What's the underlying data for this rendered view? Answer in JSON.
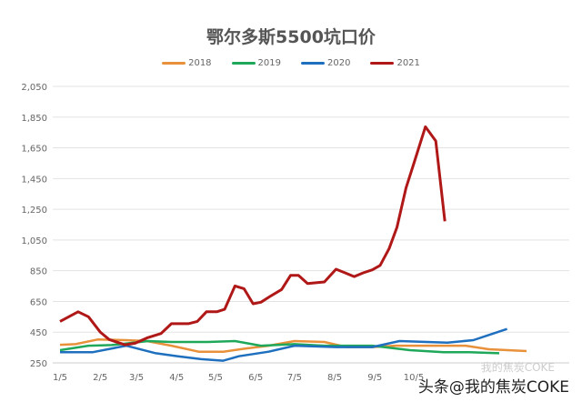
{
  "chart_data": {
    "type": "line",
    "title": "鄂尔多斯5500坑口价",
    "xlabel": "",
    "ylabel": "",
    "ylim": [
      250,
      2050
    ],
    "yticks": [
      "2,050",
      "1,850",
      "1,650",
      "1,450",
      "1,250",
      "1,050",
      "850",
      "650",
      "450",
      "250"
    ],
    "xticks": [
      "1/5",
      "2/5",
      "3/5",
      "4/5",
      "5/5",
      "6/5",
      "7/5",
      "8/5",
      "9/5",
      "10/5"
    ],
    "grid": "horizontal",
    "legend_position": "top",
    "series": [
      {
        "name": "2018",
        "color": "#e8913a",
        "points": [
          [
            "1/5",
            368
          ],
          [
            "1/17",
            372
          ],
          [
            "2/3",
            402
          ],
          [
            "2/25",
            398
          ],
          [
            "3/13",
            392
          ],
          [
            "4/1",
            362
          ],
          [
            "4/22",
            323
          ],
          [
            "5/11",
            323
          ],
          [
            "5/28",
            343
          ],
          [
            "6/15",
            362
          ],
          [
            "7/5",
            392
          ],
          [
            "7/28",
            386
          ],
          [
            "8/14",
            353
          ],
          [
            "9/3",
            353
          ],
          [
            "9/21",
            362
          ],
          [
            "10/17",
            362
          ],
          [
            "11/14",
            362
          ],
          [
            "12/2",
            339
          ],
          [
            "12/31",
            327
          ]
        ]
      },
      {
        "name": "2019",
        "color": "#1fa85a",
        "points": [
          [
            "1/5",
            333
          ],
          [
            "1/27",
            362
          ],
          [
            "2/14",
            366
          ],
          [
            "3/14",
            392
          ],
          [
            "4/1",
            386
          ],
          [
            "4/29",
            386
          ],
          [
            "5/20",
            392
          ],
          [
            "6/9",
            362
          ],
          [
            "7/5",
            372
          ],
          [
            "7/28",
            362
          ],
          [
            "9/3",
            362
          ],
          [
            "10/2",
            333
          ],
          [
            "10/28",
            319
          ],
          [
            "11/17",
            319
          ],
          [
            "12/10",
            313
          ]
        ]
      },
      {
        "name": "2020",
        "color": "#1f6fbf",
        "points": [
          [
            "1/5",
            319
          ],
          [
            "1/30",
            319
          ],
          [
            "2/25",
            362
          ],
          [
            "3/20",
            313
          ],
          [
            "4/6",
            293
          ],
          [
            "4/24",
            274
          ],
          [
            "5/11",
            264
          ],
          [
            "5/23",
            293
          ],
          [
            "6/15",
            323
          ],
          [
            "7/5",
            362
          ],
          [
            "8/6",
            353
          ],
          [
            "9/3",
            353
          ],
          [
            "9/24",
            392
          ],
          [
            "10/31",
            382
          ],
          [
            "11/20",
            398
          ],
          [
            "12/2",
            432
          ],
          [
            "12/16",
            471
          ]
        ]
      },
      {
        "name": "2021",
        "color": "#b01818",
        "points": [
          [
            "1/5",
            520
          ],
          [
            "1/19",
            583
          ],
          [
            "1/27",
            550
          ],
          [
            "2/5",
            451
          ],
          [
            "2/12",
            402
          ],
          [
            "2/24",
            368
          ],
          [
            "3/4",
            378
          ],
          [
            "3/13",
            412
          ],
          [
            "3/24",
            441
          ],
          [
            "4/1",
            505
          ],
          [
            "4/14",
            505
          ],
          [
            "4/21",
            520
          ],
          [
            "4/28",
            583
          ],
          [
            "5/6",
            583
          ],
          [
            "5/12",
            599
          ],
          [
            "5/20",
            751
          ],
          [
            "5/27",
            733
          ],
          [
            "6/3",
            635
          ],
          [
            "6/9",
            645
          ],
          [
            "6/16",
            682
          ],
          [
            "6/25",
            728
          ],
          [
            "7/2",
            820
          ],
          [
            "7/8",
            820
          ],
          [
            "7/15",
            767
          ],
          [
            "7/28",
            777
          ],
          [
            "8/6",
            860
          ],
          [
            "8/13",
            836
          ],
          [
            "8/20",
            812
          ],
          [
            "8/27",
            836
          ],
          [
            "9/3",
            856
          ],
          [
            "9/9",
            885
          ],
          [
            "9/16",
            994
          ],
          [
            "9/22",
            1132
          ],
          [
            "9/29",
            1389
          ],
          [
            "10/5",
            1547
          ],
          [
            "10/14",
            1787
          ],
          [
            "10/22",
            1695
          ],
          [
            "10/29",
            1172
          ]
        ]
      }
    ]
  },
  "watermark": "头条@我的焦炭COKE",
  "watermark_faded": "我的焦炭COKE"
}
